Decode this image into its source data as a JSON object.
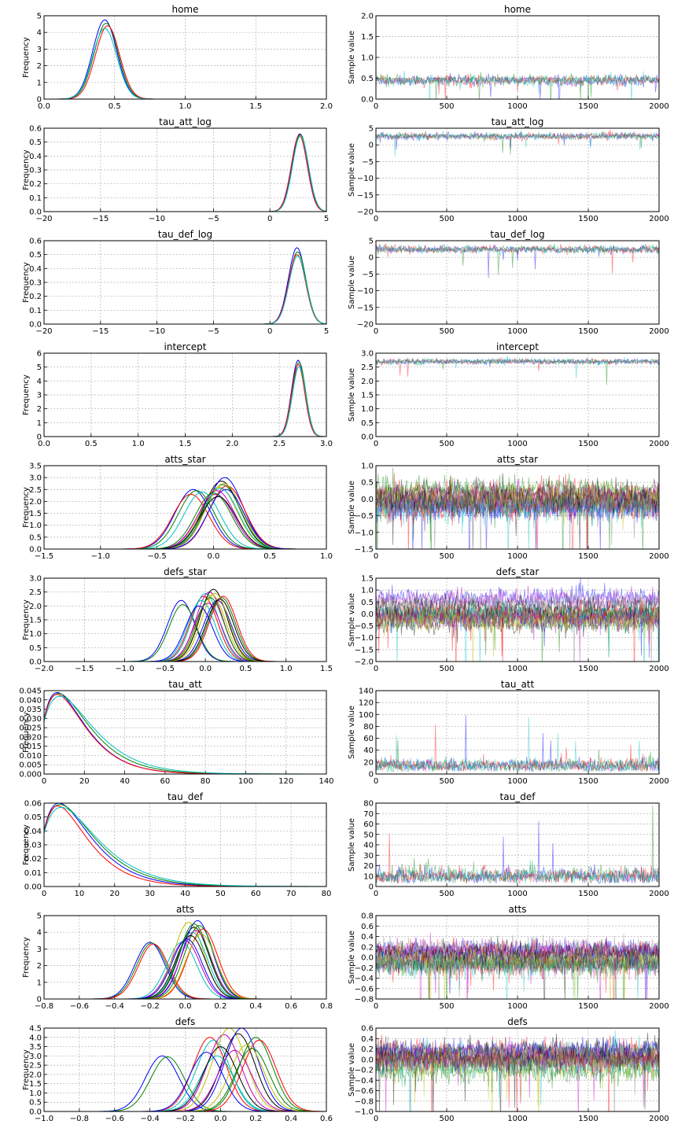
{
  "chart_data": [
    {
      "type": "line",
      "title": "home",
      "ylabel": "Frequency",
      "xlim": [
        0,
        2
      ],
      "ylim": [
        0,
        5
      ],
      "xticks": [
        "0.0",
        "0.5",
        "1.0",
        "1.5",
        "2.0"
      ],
      "yticks": [
        "0",
        "1",
        "2",
        "3",
        "4",
        "5"
      ],
      "grid": true,
      "series_count": 4,
      "peaks": [
        {
          "x": 0.43,
          "y": 4.75
        },
        {
          "x": 0.44,
          "y": 4.55
        },
        {
          "x": 0.45,
          "y": 4.4
        },
        {
          "x": 0.43,
          "y": 4.25
        }
      ],
      "spread": 0.085
    },
    {
      "type": "line",
      "title": "home",
      "ylabel": "Sample value",
      "xlim": [
        0,
        2000
      ],
      "ylim": [
        0,
        2
      ],
      "xticks": [
        "0",
        "500",
        "1000",
        "1500",
        "2000"
      ],
      "yticks": [
        "0.0",
        "0.5",
        "1.0",
        "1.5",
        "2.0"
      ],
      "grid": true,
      "trace": {
        "center": 0.45,
        "band": 0.13,
        "series_count": 4
      }
    },
    {
      "type": "line",
      "title": "tau_att_log",
      "ylabel": "Frequency",
      "xlim": [
        -20,
        5
      ],
      "ylim": [
        0,
        0.6
      ],
      "xticks": [
        "−20",
        "−15",
        "−10",
        "−5",
        "0",
        "5"
      ],
      "yticks": [
        "0.0",
        "0.1",
        "0.2",
        "0.3",
        "0.4",
        "0.5",
        "0.6"
      ],
      "grid": true,
      "series_count": 4,
      "peaks": [
        {
          "x": 2.65,
          "y": 0.56
        },
        {
          "x": 2.7,
          "y": 0.555
        },
        {
          "x": 2.6,
          "y": 0.55
        },
        {
          "x": 2.7,
          "y": 0.545
        }
      ],
      "spread": 0.7
    },
    {
      "type": "line",
      "title": "tau_att_log",
      "ylabel": "Sample value",
      "xlim": [
        0,
        2000
      ],
      "ylim": [
        -20,
        5
      ],
      "xticks": [
        "0",
        "500",
        "1000",
        "1500",
        "2000"
      ],
      "yticks": [
        "−20",
        "−15",
        "−10",
        "−5",
        "0",
        "5"
      ],
      "grid": true,
      "trace": {
        "center": 2.6,
        "band": 1.0,
        "series_count": 4
      }
    },
    {
      "type": "line",
      "title": "tau_def_log",
      "ylabel": "Frequency",
      "xlim": [
        -20,
        5
      ],
      "ylim": [
        0,
        0.6
      ],
      "xticks": [
        "−20",
        "−15",
        "−10",
        "−5",
        "0",
        "5"
      ],
      "yticks": [
        "0.0",
        "0.1",
        "0.2",
        "0.3",
        "0.4",
        "0.5",
        "0.6"
      ],
      "grid": true,
      "series_count": 4,
      "peaks": [
        {
          "x": 2.4,
          "y": 0.55
        },
        {
          "x": 2.45,
          "y": 0.52
        },
        {
          "x": 2.4,
          "y": 0.5
        },
        {
          "x": 2.45,
          "y": 0.49
        }
      ],
      "spread": 0.75
    },
    {
      "type": "line",
      "title": "tau_def_log",
      "ylabel": "Sample value",
      "xlim": [
        0,
        2000
      ],
      "ylim": [
        -20,
        5
      ],
      "xticks": [
        "0",
        "500",
        "1000",
        "1500",
        "2000"
      ],
      "yticks": [
        "−20",
        "−15",
        "−10",
        "−5",
        "0",
        "5"
      ],
      "grid": true,
      "trace": {
        "center": 2.4,
        "band": 1.1,
        "series_count": 4
      }
    },
    {
      "type": "line",
      "title": "intercept",
      "ylabel": "Frequency",
      "xlim": [
        0,
        3
      ],
      "ylim": [
        0,
        6
      ],
      "xticks": [
        "0.0",
        "0.5",
        "1.0",
        "1.5",
        "2.0",
        "2.5",
        "3.0"
      ],
      "yticks": [
        "0",
        "1",
        "2",
        "3",
        "4",
        "5",
        "6"
      ],
      "grid": true,
      "series_count": 4,
      "peaks": [
        {
          "x": 2.7,
          "y": 5.5
        },
        {
          "x": 2.71,
          "y": 5.35
        },
        {
          "x": 2.7,
          "y": 5.2
        },
        {
          "x": 2.71,
          "y": 5.05
        }
      ],
      "spread": 0.07
    },
    {
      "type": "line",
      "title": "intercept",
      "ylabel": "Sample value",
      "xlim": [
        0,
        2000
      ],
      "ylim": [
        0,
        3
      ],
      "xticks": [
        "0",
        "500",
        "1000",
        "1500",
        "2000"
      ],
      "yticks": [
        "0.0",
        "0.5",
        "1.0",
        "1.5",
        "2.0",
        "2.5",
        "3.0"
      ],
      "grid": true,
      "trace": {
        "center": 2.7,
        "band": 0.1,
        "series_count": 4
      }
    },
    {
      "type": "line",
      "title": "atts_star",
      "ylabel": "Frequency",
      "xlim": [
        -1.5,
        1
      ],
      "ylim": [
        0,
        3.5
      ],
      "xticks": [
        "−1.5",
        "−1.0",
        "−0.5",
        "0.0",
        "0.5",
        "1.0"
      ],
      "yticks": [
        "0.0",
        "0.5",
        "1.0",
        "1.5",
        "2.0",
        "2.5",
        "3.0",
        "3.5"
      ],
      "grid": true,
      "series_count": 16,
      "peaks": [
        {
          "x": -0.18,
          "y": 2.5
        },
        {
          "x": -0.15,
          "y": 2.45
        },
        {
          "x": -0.2,
          "y": 2.3
        },
        {
          "x": -0.1,
          "y": 2.4
        },
        {
          "x": 0.02,
          "y": 2.3
        },
        {
          "x": 0.05,
          "y": 2.6
        },
        {
          "x": 0.07,
          "y": 2.85
        },
        {
          "x": 0.1,
          "y": 3.0
        },
        {
          "x": 0.08,
          "y": 2.7
        },
        {
          "x": 0.12,
          "y": 2.65
        },
        {
          "x": 0.06,
          "y": 2.55
        },
        {
          "x": 0.03,
          "y": 2.45
        },
        {
          "x": 0.09,
          "y": 2.75
        },
        {
          "x": 0.04,
          "y": 2.2
        },
        {
          "x": 0.11,
          "y": 2.5
        },
        {
          "x": 0.0,
          "y": 2.35
        }
      ],
      "spread": 0.16
    },
    {
      "type": "line",
      "title": "atts_star",
      "ylabel": "Sample value",
      "xlim": [
        0,
        2000
      ],
      "ylim": [
        -1.5,
        1
      ],
      "xticks": [
        "0",
        "500",
        "1000",
        "1500",
        "2000"
      ],
      "yticks": [
        "−1.5",
        "−1.0",
        "−0.5",
        "0.0",
        "0.5",
        "1.0"
      ],
      "grid": true,
      "trace": {
        "center": 0.0,
        "band": 0.38,
        "series_count": 16
      }
    },
    {
      "type": "line",
      "title": "defs_star",
      "ylabel": "Frequency",
      "xlim": [
        -2,
        1.5
      ],
      "ylim": [
        0,
        3
      ],
      "xticks": [
        "−2.0",
        "−1.5",
        "−1.0",
        "−0.5",
        "0.0",
        "0.5",
        "1.0",
        "1.5"
      ],
      "yticks": [
        "0.0",
        "0.5",
        "1.0",
        "1.5",
        "2.0",
        "2.5",
        "3.0"
      ],
      "grid": true,
      "series_count": 16,
      "peaks": [
        {
          "x": -0.3,
          "y": 2.2
        },
        {
          "x": -0.28,
          "y": 2.05
        },
        {
          "x": -0.02,
          "y": 2.35
        },
        {
          "x": 0.0,
          "y": 2.45
        },
        {
          "x": 0.05,
          "y": 2.5
        },
        {
          "x": 0.08,
          "y": 2.4
        },
        {
          "x": 0.1,
          "y": 2.6
        },
        {
          "x": 0.15,
          "y": 2.2
        },
        {
          "x": 0.2,
          "y": 2.3
        },
        {
          "x": 0.22,
          "y": 2.35
        },
        {
          "x": -0.05,
          "y": 2.2
        },
        {
          "x": 0.03,
          "y": 2.1
        },
        {
          "x": 0.12,
          "y": 2.45
        },
        {
          "x": 0.18,
          "y": 2.25
        },
        {
          "x": -0.08,
          "y": 2.0
        },
        {
          "x": 0.06,
          "y": 2.3
        }
      ],
      "spread": 0.17
    },
    {
      "type": "line",
      "title": "defs_star",
      "ylabel": "Sample value",
      "xlim": [
        0,
        2000
      ],
      "ylim": [
        -2,
        1.5
      ],
      "xticks": [
        "0",
        "500",
        "1000",
        "1500",
        "2000"
      ],
      "yticks": [
        "−2.0",
        "−1.5",
        "−1.0",
        "−0.5",
        "0.0",
        "0.5",
        "1.0",
        "1.5"
      ],
      "grid": true,
      "trace": {
        "center": 0.0,
        "band": 0.42,
        "series_count": 16
      }
    },
    {
      "type": "line",
      "title": "tau_att",
      "ylabel": "Frequency",
      "xlim": [
        0,
        140
      ],
      "ylim": [
        0,
        0.045
      ],
      "xticks": [
        "0",
        "20",
        "40",
        "60",
        "80",
        "100",
        "120",
        "140"
      ],
      "yticks": [
        "0.000",
        "0.005",
        "0.010",
        "0.015",
        "0.020",
        "0.025",
        "0.030",
        "0.035",
        "0.040",
        "0.045"
      ],
      "grid": true,
      "series_count": 4,
      "skewed": [
        {
          "peak_x": 10,
          "peak_y": 0.044
        },
        {
          "peak_x": 11,
          "peak_y": 0.0435
        },
        {
          "peak_x": 10,
          "peak_y": 0.043
        },
        {
          "peak_x": 12,
          "peak_y": 0.042
        }
      ]
    },
    {
      "type": "line",
      "title": "tau_att",
      "ylabel": "Sample value",
      "xlim": [
        0,
        2000
      ],
      "ylim": [
        0,
        140
      ],
      "xticks": [
        "0",
        "500",
        "1000",
        "1500",
        "2000"
      ],
      "yticks": [
        "0",
        "20",
        "40",
        "60",
        "80",
        "100",
        "120",
        "140"
      ],
      "grid": true,
      "trace": {
        "center": 14,
        "band": 12,
        "series_count": 4,
        "positive": true
      }
    },
    {
      "type": "line",
      "title": "tau_def",
      "ylabel": "Frequency",
      "xlim": [
        0,
        80
      ],
      "ylim": [
        0,
        0.06
      ],
      "xticks": [
        "0",
        "10",
        "20",
        "30",
        "40",
        "50",
        "60",
        "70",
        "80"
      ],
      "yticks": [
        "0.00",
        "0.01",
        "0.02",
        "0.03",
        "0.04",
        "0.05",
        "0.06"
      ],
      "grid": true,
      "series_count": 4,
      "skewed": [
        {
          "peak_x": 6.5,
          "peak_y": 0.06
        },
        {
          "peak_x": 7,
          "peak_y": 0.059
        },
        {
          "peak_x": 6,
          "peak_y": 0.058
        },
        {
          "peak_x": 7.5,
          "peak_y": 0.057
        }
      ]
    },
    {
      "type": "line",
      "title": "tau_def",
      "ylabel": "Sample value",
      "xlim": [
        0,
        2000
      ],
      "ylim": [
        0,
        80
      ],
      "xticks": [
        "0",
        "500",
        "1000",
        "1500",
        "2000"
      ],
      "yticks": [
        "0",
        "10",
        "20",
        "30",
        "40",
        "50",
        "60",
        "70",
        "80"
      ],
      "grid": true,
      "trace": {
        "center": 10,
        "band": 8,
        "series_count": 4,
        "positive": true
      }
    },
    {
      "type": "line",
      "title": "atts",
      "ylabel": "Frequency",
      "xlim": [
        -0.8,
        0.8
      ],
      "ylim": [
        0,
        5
      ],
      "xticks": [
        "−0.8",
        "−0.6",
        "−0.4",
        "−0.2",
        "0.0",
        "0.2",
        "0.4",
        "0.6",
        "0.8"
      ],
      "yticks": [
        "0",
        "1",
        "2",
        "3",
        "4",
        "5"
      ],
      "grid": true,
      "series_count": 16,
      "peaks": [
        {
          "x": -0.2,
          "y": 3.4
        },
        {
          "x": -0.19,
          "y": 3.35
        },
        {
          "x": -0.18,
          "y": 3.3
        },
        {
          "x": -0.02,
          "y": 3.4
        },
        {
          "x": 0.0,
          "y": 3.5
        },
        {
          "x": 0.02,
          "y": 4.6
        },
        {
          "x": 0.05,
          "y": 4.3
        },
        {
          "x": 0.07,
          "y": 4.7
        },
        {
          "x": 0.08,
          "y": 4.4
        },
        {
          "x": 0.1,
          "y": 4.2
        },
        {
          "x": 0.04,
          "y": 4.0
        },
        {
          "x": 0.06,
          "y": 4.1
        },
        {
          "x": 0.09,
          "y": 3.9
        },
        {
          "x": 0.03,
          "y": 3.8
        },
        {
          "x": 0.01,
          "y": 3.6
        },
        {
          "x": 0.05,
          "y": 4.5
        }
      ],
      "spread": 0.085
    },
    {
      "type": "line",
      "title": "atts",
      "ylabel": "Sample value",
      "xlim": [
        0,
        2000
      ],
      "ylim": [
        -0.8,
        0.8
      ],
      "xticks": [
        "0",
        "500",
        "1000",
        "1500",
        "2000"
      ],
      "yticks": [
        "−0.8",
        "−0.6",
        "−0.4",
        "−0.2",
        "0.0",
        "0.2",
        "0.4",
        "0.6",
        "0.8"
      ],
      "grid": true,
      "trace": {
        "center": 0.0,
        "band": 0.2,
        "series_count": 16
      }
    },
    {
      "type": "line",
      "title": "defs",
      "ylabel": "Frequency",
      "xlim": [
        -1,
        0.6
      ],
      "ylim": [
        0,
        4.5
      ],
      "xticks": [
        "−1.0",
        "−0.8",
        "−0.6",
        "−0.4",
        "−0.2",
        "0.0",
        "0.2",
        "0.4",
        "0.6"
      ],
      "yticks": [
        "0.0",
        "0.5",
        "1.0",
        "1.5",
        "2.0",
        "2.5",
        "3.0",
        "3.5",
        "4.0",
        "4.5"
      ],
      "grid": true,
      "series_count": 16,
      "peaks": [
        {
          "x": -0.33,
          "y": 3.0
        },
        {
          "x": -0.3,
          "y": 2.95
        },
        {
          "x": -0.06,
          "y": 4.0
        },
        {
          "x": -0.04,
          "y": 3.85
        },
        {
          "x": 0.02,
          "y": 4.15
        },
        {
          "x": 0.05,
          "y": 4.5
        },
        {
          "x": 0.1,
          "y": 4.2
        },
        {
          "x": 0.12,
          "y": 4.5
        },
        {
          "x": 0.2,
          "y": 4.0
        },
        {
          "x": 0.22,
          "y": 3.85
        },
        {
          "x": -0.02,
          "y": 3.0
        },
        {
          "x": 0.08,
          "y": 3.3
        },
        {
          "x": 0.15,
          "y": 3.6
        },
        {
          "x": 0.0,
          "y": 3.5
        },
        {
          "x": -0.08,
          "y": 3.2
        },
        {
          "x": 0.18,
          "y": 3.4
        }
      ],
      "spread": 0.095
    },
    {
      "type": "line",
      "title": "defs",
      "ylabel": "Sample value",
      "xlim": [
        0,
        2000
      ],
      "ylim": [
        -1,
        0.6
      ],
      "xticks": [
        "0",
        "500",
        "1000",
        "1500",
        "2000"
      ],
      "yticks": [
        "−1.0",
        "−0.8",
        "−0.6",
        "−0.4",
        "−0.2",
        "0.0",
        "0.2",
        "0.4",
        "0.6"
      ],
      "grid": true,
      "trace": {
        "center": 0.0,
        "band": 0.22,
        "series_count": 16
      }
    }
  ],
  "colors": {
    "palette": [
      "#0000ff",
      "#008000",
      "#ff0000",
      "#00bfbf",
      "#bf00bf",
      "#bfbf00",
      "#000000"
    ],
    "trace_palette": [
      "#0000ff",
      "#008000",
      "#ff0000",
      "#00bfbf",
      "#bf00bf",
      "#bfbf00",
      "#000000",
      "#808080"
    ]
  }
}
